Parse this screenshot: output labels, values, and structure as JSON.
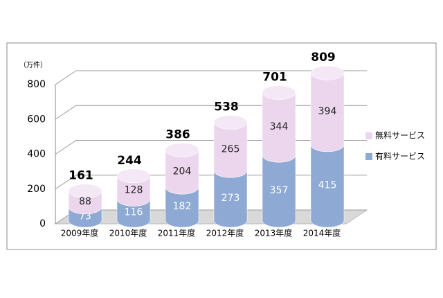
{
  "chart_data": {
    "type": "bar3d-stacked",
    "unit_label": "（万件）",
    "categories": [
      "2009年度",
      "2010年度",
      "2011年度",
      "2012年度",
      "2013年度",
      "2014年度"
    ],
    "series": [
      {
        "name": "有料サービス",
        "color": "#8eaad4",
        "values": [
          73,
          116,
          182,
          273,
          357,
          415
        ]
      },
      {
        "name": "無料サービス",
        "color": "#ecd6ee",
        "values": [
          88,
          128,
          204,
          265,
          344,
          394
        ]
      }
    ],
    "totals": [
      161,
      244,
      386,
      538,
      701,
      809
    ],
    "ylim": [
      0,
      800
    ],
    "yticks": [
      0,
      200,
      400,
      600,
      800
    ],
    "grid": true
  }
}
